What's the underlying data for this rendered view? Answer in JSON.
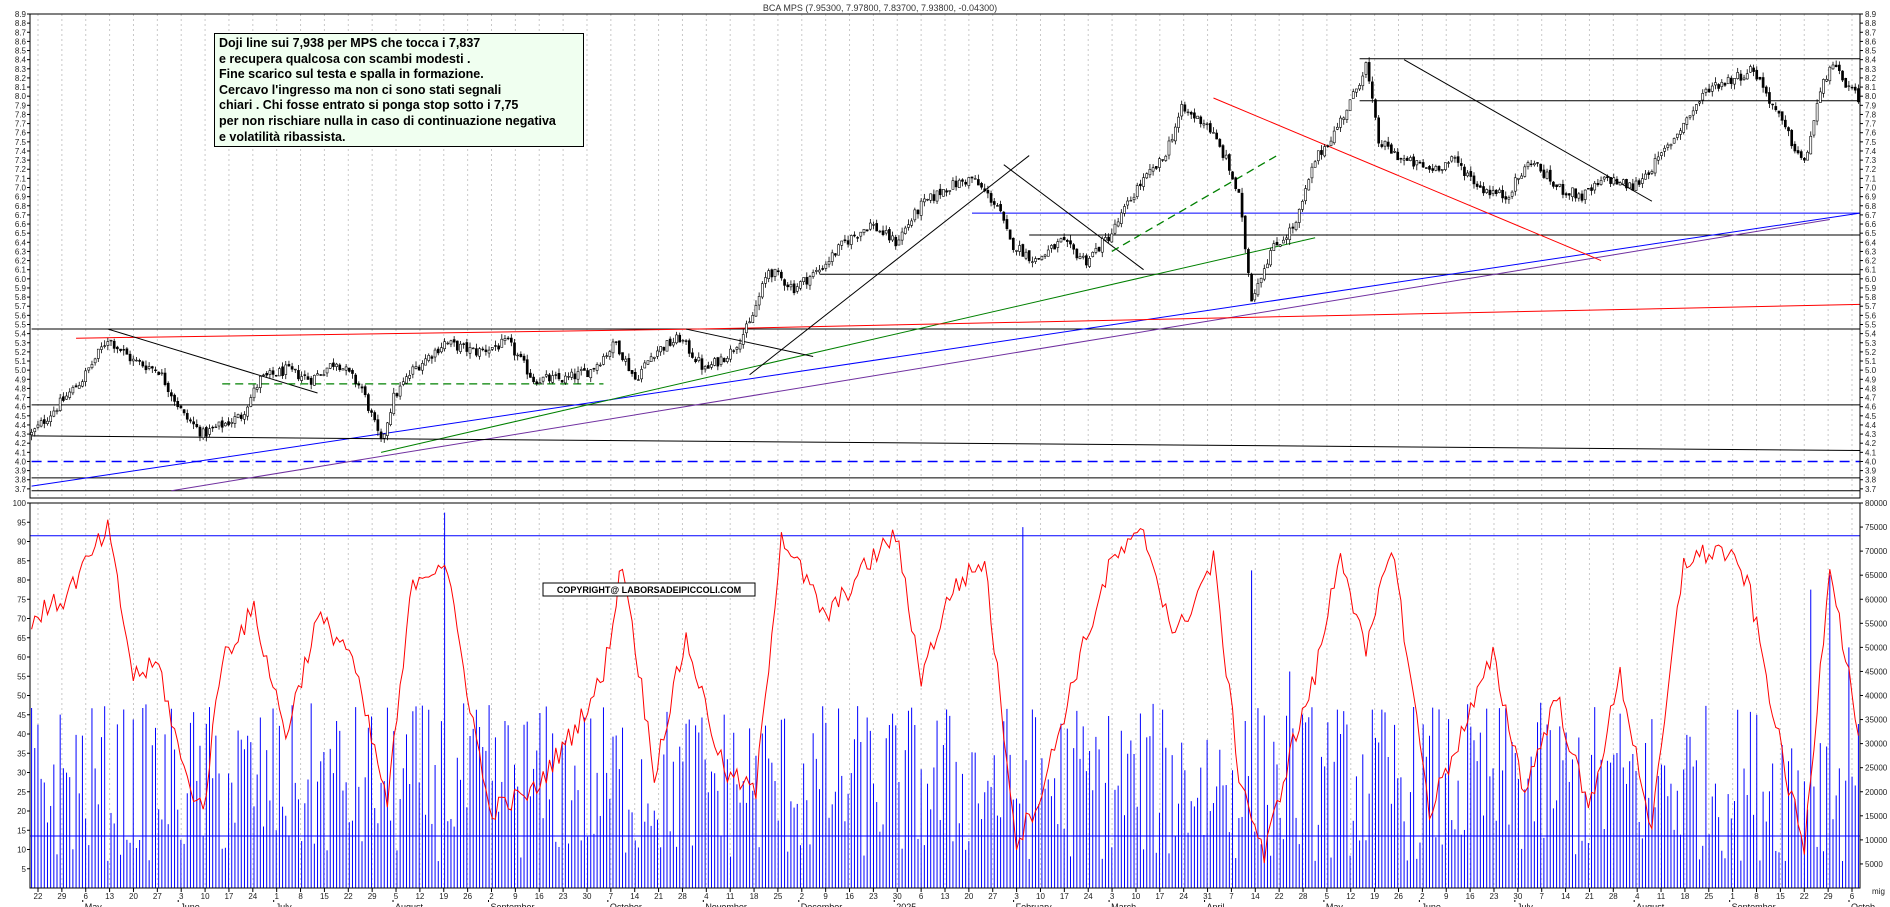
{
  "chart_data": [
    {
      "type": "candlestick",
      "title": "BCA MPS (7.95300, 7.97800, 7.83700, 7.93800, -0.04300)",
      "ylim": [
        3.6,
        8.9
      ],
      "y_ticks": [
        "3.7",
        "3.8",
        "3.9",
        "4.0",
        "4.1",
        "4.2",
        "4.3",
        "4.4",
        "4.5",
        "4.6",
        "4.7",
        "4.8",
        "4.9",
        "5.0",
        "5.1",
        "5.2",
        "5.3",
        "5.4",
        "5.5",
        "5.6",
        "5.7",
        "5.8",
        "5.9",
        "6.0",
        "6.1",
        "6.2",
        "6.3",
        "6.4",
        "6.5",
        "6.6",
        "6.7",
        "6.8",
        "6.9",
        "7.0",
        "7.1",
        "7.2",
        "7.3",
        "7.4",
        "7.5",
        "7.6",
        "7.7",
        "7.8",
        "7.9",
        "8.0",
        "8.1",
        "8.2",
        "8.3",
        "8.4",
        "8.5",
        "8.6",
        "8.7",
        "8.8",
        "8.9"
      ],
      "price_path": [
        {
          "i": 0,
          "v": 4.3
        },
        {
          "i": 8,
          "v": 4.6
        },
        {
          "i": 16,
          "v": 4.9
        },
        {
          "i": 24,
          "v": 5.35
        },
        {
          "i": 32,
          "v": 5.1
        },
        {
          "i": 40,
          "v": 5.0
        },
        {
          "i": 48,
          "v": 4.5
        },
        {
          "i": 54,
          "v": 4.3
        },
        {
          "i": 60,
          "v": 4.4
        },
        {
          "i": 66,
          "v": 4.5
        },
        {
          "i": 72,
          "v": 4.9
        },
        {
          "i": 80,
          "v": 5.0
        },
        {
          "i": 88,
          "v": 4.9
        },
        {
          "i": 96,
          "v": 5.1
        },
        {
          "i": 104,
          "v": 4.8
        },
        {
          "i": 110,
          "v": 4.2
        },
        {
          "i": 114,
          "v": 4.7
        },
        {
          "i": 120,
          "v": 5.0
        },
        {
          "i": 130,
          "v": 5.3
        },
        {
          "i": 140,
          "v": 5.2
        },
        {
          "i": 150,
          "v": 5.3
        },
        {
          "i": 158,
          "v": 4.9
        },
        {
          "i": 168,
          "v": 4.9
        },
        {
          "i": 176,
          "v": 5.0
        },
        {
          "i": 184,
          "v": 5.3
        },
        {
          "i": 190,
          "v": 4.9
        },
        {
          "i": 196,
          "v": 5.2
        },
        {
          "i": 204,
          "v": 5.35
        },
        {
          "i": 212,
          "v": 5.0
        },
        {
          "i": 220,
          "v": 5.2
        },
        {
          "i": 226,
          "v": 5.5
        },
        {
          "i": 232,
          "v": 6.1
        },
        {
          "i": 240,
          "v": 5.9
        },
        {
          "i": 248,
          "v": 6.1
        },
        {
          "i": 256,
          "v": 6.4
        },
        {
          "i": 264,
          "v": 6.6
        },
        {
          "i": 272,
          "v": 6.4
        },
        {
          "i": 280,
          "v": 6.8
        },
        {
          "i": 288,
          "v": 7.0
        },
        {
          "i": 296,
          "v": 7.1
        },
        {
          "i": 304,
          "v": 6.8
        },
        {
          "i": 308,
          "v": 6.4
        },
        {
          "i": 316,
          "v": 6.2
        },
        {
          "i": 324,
          "v": 6.4
        },
        {
          "i": 332,
          "v": 6.2
        },
        {
          "i": 340,
          "v": 6.5
        },
        {
          "i": 348,
          "v": 7.0
        },
        {
          "i": 356,
          "v": 7.3
        },
        {
          "i": 362,
          "v": 7.85
        },
        {
          "i": 370,
          "v": 7.7
        },
        {
          "i": 376,
          "v": 7.3
        },
        {
          "i": 380,
          "v": 6.9
        },
        {
          "i": 384,
          "v": 5.8
        },
        {
          "i": 390,
          "v": 6.3
        },
        {
          "i": 398,
          "v": 6.6
        },
        {
          "i": 404,
          "v": 7.3
        },
        {
          "i": 410,
          "v": 7.6
        },
        {
          "i": 416,
          "v": 8.0
        },
        {
          "i": 420,
          "v": 8.35
        },
        {
          "i": 424,
          "v": 7.5
        },
        {
          "i": 432,
          "v": 7.3
        },
        {
          "i": 440,
          "v": 7.2
        },
        {
          "i": 448,
          "v": 7.3
        },
        {
          "i": 456,
          "v": 7.0
        },
        {
          "i": 464,
          "v": 6.9
        },
        {
          "i": 472,
          "v": 7.3
        },
        {
          "i": 480,
          "v": 7.0
        },
        {
          "i": 488,
          "v": 6.9
        },
        {
          "i": 496,
          "v": 7.1
        },
        {
          "i": 504,
          "v": 7.0
        },
        {
          "i": 512,
          "v": 7.3
        },
        {
          "i": 520,
          "v": 7.7
        },
        {
          "i": 528,
          "v": 8.1
        },
        {
          "i": 536,
          "v": 8.2
        },
        {
          "i": 542,
          "v": 8.3
        },
        {
          "i": 548,
          "v": 7.9
        },
        {
          "i": 554,
          "v": 7.5
        },
        {
          "i": 558,
          "v": 7.25
        },
        {
          "i": 562,
          "v": 7.9
        },
        {
          "i": 566,
          "v": 8.35
        },
        {
          "i": 572,
          "v": 8.1
        },
        {
          "i": 576,
          "v": 7.938
        }
      ],
      "horizontal_levels": [
        {
          "value": 8.41,
          "color": "#000000",
          "x_start_index": 418
        },
        {
          "value": 7.95,
          "color": "#000000",
          "x_start_index": 418
        },
        {
          "value": 6.72,
          "color": "#0000ff",
          "x_start_index": 296
        },
        {
          "value": 6.48,
          "color": "#000000",
          "x_start_index": 314
        },
        {
          "value": 6.05,
          "color": "#000000",
          "x_start_index": 248
        },
        {
          "value": 5.45,
          "color": "#000000",
          "x_start_index": 0
        },
        {
          "value": 4.62,
          "color": "#000000",
          "x_start_index": 0
        },
        {
          "value": 4.0,
          "color": "#0000ff",
          "x_start_index": 0,
          "dashed": true
        },
        {
          "value": 3.82,
          "color": "#000000",
          "x_start_index": 0
        },
        {
          "value": 3.68,
          "color": "#000000",
          "x_start_index": 0
        }
      ],
      "trendlines": [
        {
          "from": [
            0,
            3.73
          ],
          "to": [
            576,
            6.72
          ],
          "color": "#0000ff"
        },
        {
          "from": [
            44,
            3.68
          ],
          "to": [
            566,
            6.65
          ],
          "color": "#7030a0"
        },
        {
          "from": [
            110,
            4.1
          ],
          "to": [
            404,
            6.45
          ],
          "color": "#008000"
        },
        {
          "from": [
            14,
            5.35
          ],
          "to": [
            210,
            5.45
          ],
          "color": "#ff0000"
        },
        {
          "from": [
            210,
            5.45
          ],
          "to": [
            610,
            5.72
          ],
          "color": "#ff0000"
        },
        {
          "from": [
            372,
            7.98
          ],
          "to": [
            494,
            6.2
          ],
          "color": "#ff0000"
        },
        {
          "from": [
            0,
            4.28
          ],
          "to": [
            610,
            4.12
          ],
          "color": "#000000"
        },
        {
          "from": [
            24,
            5.45
          ],
          "to": [
            90,
            4.75
          ],
          "color": "#000000"
        },
        {
          "from": [
            226,
            4.95
          ],
          "to": [
            314,
            7.35
          ],
          "color": "#000000"
        },
        {
          "from": [
            306,
            7.25
          ],
          "to": [
            350,
            6.1
          ],
          "color": "#000000"
        },
        {
          "from": [
            432,
            8.4
          ],
          "to": [
            510,
            6.85
          ],
          "color": "#000000"
        },
        {
          "from": [
            206,
            5.45
          ],
          "to": [
            246,
            5.15
          ],
          "color": "#000000"
        },
        {
          "from": [
            60,
            4.85
          ],
          "to": [
            180,
            4.85
          ],
          "color": "#008000",
          "dashed": true
        },
        {
          "from": [
            340,
            6.3
          ],
          "to": [
            392,
            7.35
          ],
          "color": "#008000",
          "dashed": true
        }
      ]
    },
    {
      "type": "oscillator",
      "ylim": [
        0,
        100
      ],
      "y_ticks": [
        "5",
        "10",
        "15",
        "20",
        "25",
        "30",
        "35",
        "40",
        "45",
        "50",
        "55",
        "60",
        "65",
        "70",
        "75",
        "80",
        "85",
        "90",
        "95",
        "100"
      ],
      "reference_lines": [
        91.5,
        13.5
      ],
      "path": [
        {
          "i": 0,
          "v": 70
        },
        {
          "i": 10,
          "v": 75
        },
        {
          "i": 24,
          "v": 93
        },
        {
          "i": 32,
          "v": 55
        },
        {
          "i": 40,
          "v": 58
        },
        {
          "i": 48,
          "v": 30
        },
        {
          "i": 54,
          "v": 20
        },
        {
          "i": 60,
          "v": 60
        },
        {
          "i": 70,
          "v": 72
        },
        {
          "i": 80,
          "v": 40
        },
        {
          "i": 90,
          "v": 70
        },
        {
          "i": 100,
          "v": 62
        },
        {
          "i": 112,
          "v": 22
        },
        {
          "i": 120,
          "v": 80
        },
        {
          "i": 130,
          "v": 85
        },
        {
          "i": 144,
          "v": 20
        },
        {
          "i": 158,
          "v": 25
        },
        {
          "i": 170,
          "v": 40
        },
        {
          "i": 180,
          "v": 55
        },
        {
          "i": 186,
          "v": 85
        },
        {
          "i": 196,
          "v": 30
        },
        {
          "i": 206,
          "v": 65
        },
        {
          "i": 218,
          "v": 30
        },
        {
          "i": 228,
          "v": 25
        },
        {
          "i": 236,
          "v": 92
        },
        {
          "i": 250,
          "v": 70
        },
        {
          "i": 264,
          "v": 85
        },
        {
          "i": 272,
          "v": 92
        },
        {
          "i": 280,
          "v": 55
        },
        {
          "i": 290,
          "v": 78
        },
        {
          "i": 300,
          "v": 85
        },
        {
          "i": 310,
          "v": 12
        },
        {
          "i": 318,
          "v": 25
        },
        {
          "i": 330,
          "v": 60
        },
        {
          "i": 340,
          "v": 85
        },
        {
          "i": 350,
          "v": 92
        },
        {
          "i": 360,
          "v": 65
        },
        {
          "i": 372,
          "v": 85
        },
        {
          "i": 380,
          "v": 30
        },
        {
          "i": 388,
          "v": 8
        },
        {
          "i": 396,
          "v": 35
        },
        {
          "i": 404,
          "v": 55
        },
        {
          "i": 412,
          "v": 88
        },
        {
          "i": 420,
          "v": 60
        },
        {
          "i": 428,
          "v": 90
        },
        {
          "i": 440,
          "v": 20
        },
        {
          "i": 450,
          "v": 40
        },
        {
          "i": 460,
          "v": 60
        },
        {
          "i": 470,
          "v": 25
        },
        {
          "i": 480,
          "v": 50
        },
        {
          "i": 490,
          "v": 20
        },
        {
          "i": 500,
          "v": 55
        },
        {
          "i": 510,
          "v": 15
        },
        {
          "i": 520,
          "v": 85
        },
        {
          "i": 532,
          "v": 88
        },
        {
          "i": 540,
          "v": 80
        },
        {
          "i": 552,
          "v": 30
        },
        {
          "i": 558,
          "v": 10
        },
        {
          "i": 566,
          "v": 85
        },
        {
          "i": 576,
          "v": 35
        }
      ]
    },
    {
      "type": "bar",
      "series_color": "#0000ff",
      "ylim": [
        0,
        80000
      ],
      "y_ticks": [
        "5000",
        "10000",
        "15000",
        "20000",
        "25000",
        "30000",
        "35000",
        "40000",
        "45000",
        "50000",
        "55000",
        "60000",
        "65000",
        "70000",
        "75000",
        "80000"
      ],
      "typical_volume": 22000,
      "volume_spikes": [
        {
          "i": 130,
          "v": 78000
        },
        {
          "i": 312,
          "v": 75000
        },
        {
          "i": 384,
          "v": 66000
        },
        {
          "i": 396,
          "v": 45000
        },
        {
          "i": 560,
          "v": 62000
        },
        {
          "i": 566,
          "v": 65000
        },
        {
          "i": 572,
          "v": 50000
        }
      ]
    }
  ],
  "x_axis": {
    "day_ticks": [
      "22",
      "29",
      "6",
      "13",
      "20",
      "27",
      "3",
      "10",
      "17",
      "24",
      "1",
      "8",
      "15",
      "22",
      "29",
      "5",
      "12",
      "19",
      "26",
      "2",
      "9",
      "16",
      "23",
      "30",
      "7",
      "14",
      "21",
      "28",
      "4",
      "11",
      "18",
      "25",
      "2",
      "9",
      "16",
      "23",
      "30",
      "6",
      "13",
      "20",
      "27",
      "3",
      "10",
      "17",
      "24",
      "3",
      "10",
      "17",
      "24",
      "31",
      "7",
      "14",
      "22",
      "28",
      "5",
      "12",
      "19",
      "26",
      "2",
      "9",
      "16",
      "23",
      "30",
      "7",
      "14",
      "21",
      "28",
      "4",
      "11",
      "18",
      "25",
      "1",
      "8",
      "15",
      "22",
      "29",
      "6"
    ],
    "months": [
      {
        "label": "May",
        "tick_index": 2
      },
      {
        "label": "June",
        "tick_index": 6
      },
      {
        "label": "July",
        "tick_index": 10
      },
      {
        "label": "August",
        "tick_index": 15
      },
      {
        "label": "September",
        "tick_index": 19
      },
      {
        "label": "October",
        "tick_index": 24
      },
      {
        "label": "November",
        "tick_index": 28
      },
      {
        "label": "December",
        "tick_index": 32
      },
      {
        "label": "2025",
        "tick_index": 36
      },
      {
        "label": "February",
        "tick_index": 41
      },
      {
        "label": "March",
        "tick_index": 45
      },
      {
        "label": "April",
        "tick_index": 49
      },
      {
        "label": "May",
        "tick_index": 54
      },
      {
        "label": "June",
        "tick_index": 58
      },
      {
        "label": "July",
        "tick_index": 62
      },
      {
        "label": "August",
        "tick_index": 67
      },
      {
        "label": "September",
        "tick_index": 71
      },
      {
        "label": "Octob",
        "tick_index": 76
      }
    ],
    "corner_label": "mig"
  },
  "annotation": {
    "lines": [
      "Doji line sui 7,938 per MPS che tocca i 7,837",
      "e recupera qualcosa con scambi modesti .",
      "Fine scarico sul testa e spalla in formazione.",
      "Cercavo l'ingresso ma non ci sono stati segnali",
      "chiari . Chi fosse entrato si ponga stop sotto i 7,75",
      "per non rischiare nulla in caso di continuazione negativa",
      "e volatilità ribassista."
    ]
  },
  "copyright": "COPYRIGHT@ LABORSADEIPICCOLI.COM",
  "colors": {
    "candle": "#000000",
    "oscillator_line": "#ff0000",
    "volume_bar": "#0000ff",
    "grid": "#c8c8c8",
    "annotation_bg": "#f0fff0"
  }
}
